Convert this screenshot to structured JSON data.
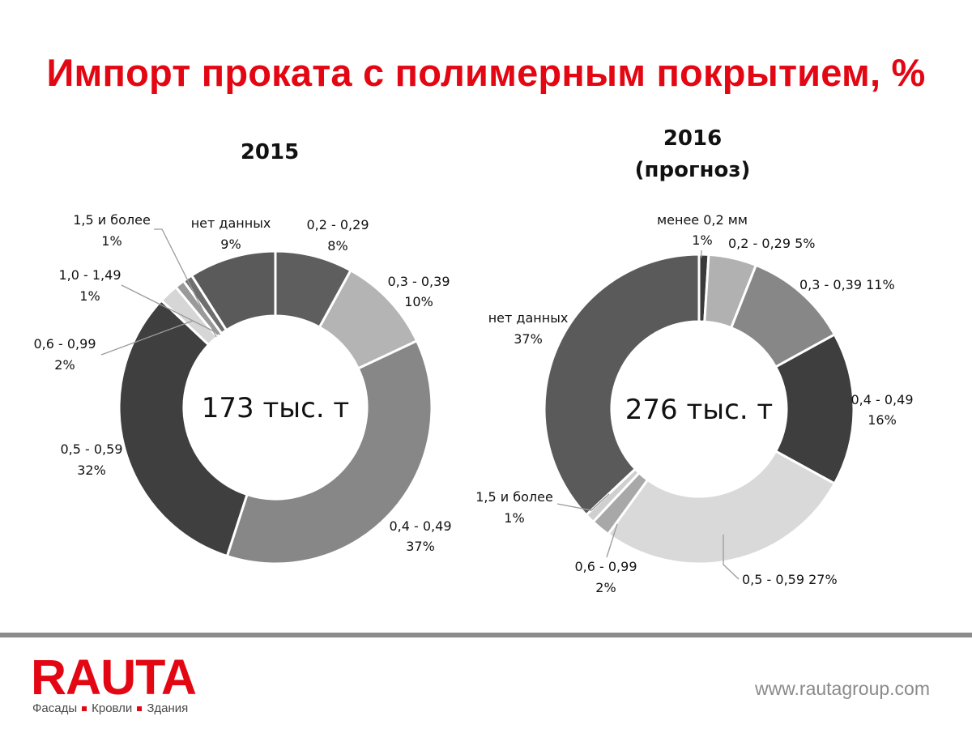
{
  "slide": {
    "title": "Импорт проката с полимерным покрытием, %"
  },
  "chart_data": [
    {
      "type": "pie",
      "title": "2015",
      "subtitle": "",
      "center_label": "173 тыс. т",
      "slices": [
        {
          "label": "0,2 - 0,29",
          "value": 8,
          "value_label": "8%",
          "color": "#5e5e5e"
        },
        {
          "label": "0,3 - 0,39",
          "value": 10,
          "value_label": "10%",
          "color": "#b4b4b4"
        },
        {
          "label": "0,4 - 0,49",
          "value": 37,
          "value_label": "37%",
          "color": "#878787"
        },
        {
          "label": "0,5 - 0,59",
          "value": 32,
          "value_label": "32%",
          "color": "#3f3f3f"
        },
        {
          "label": "0,6 - 0,99",
          "value": 2,
          "value_label": "2%",
          "color": "#d6d6d6"
        },
        {
          "label": "1,0 - 1,49",
          "value": 1,
          "value_label": "1%",
          "color": "#9a9a9a"
        },
        {
          "label": "1,5 и более",
          "value": 1,
          "value_label": "1%",
          "color": "#6e6e6e"
        },
        {
          "label": "нет данных",
          "value": 9,
          "value_label": "9%",
          "color": "#5a5a5a"
        }
      ]
    },
    {
      "type": "pie",
      "title": "2016",
      "subtitle": "(прогноз)",
      "center_label": "276 тыс. т",
      "slices": [
        {
          "label": "менее 0,2 мм",
          "value": 1,
          "value_label": "1%",
          "color": "#3a3a3a"
        },
        {
          "label": "0,2 - 0,29",
          "value": 5,
          "value_label": "5%",
          "color": "#b1b1b1"
        },
        {
          "label": "0,3 - 0,39",
          "value": 11,
          "value_label": "11%",
          "color": "#878787"
        },
        {
          "label": "0,4 - 0,49",
          "value": 16,
          "value_label": "16%",
          "color": "#3e3e3e"
        },
        {
          "label": "0,5 - 0,59",
          "value": 27,
          "value_label": "27%",
          "color": "#d9d9d9"
        },
        {
          "label": "0,6 - 0,99",
          "value": 2,
          "value_label": "2%",
          "color": "#a8a8a8"
        },
        {
          "label": "1,5 и более",
          "value": 1,
          "value_label": "1%",
          "color": "#cfcfcf"
        },
        {
          "label": "нет данных",
          "value": 37,
          "value_label": "37%",
          "color": "#5a5a5a"
        }
      ]
    }
  ],
  "footer": {
    "logo_text": "RAUTA",
    "tagline": [
      "Фасады",
      "Кровли",
      "Здания"
    ],
    "website": "www.rautagroup.com"
  },
  "colors": {
    "brand_red": "#e30613",
    "footer_line": "#8c8c8c"
  }
}
